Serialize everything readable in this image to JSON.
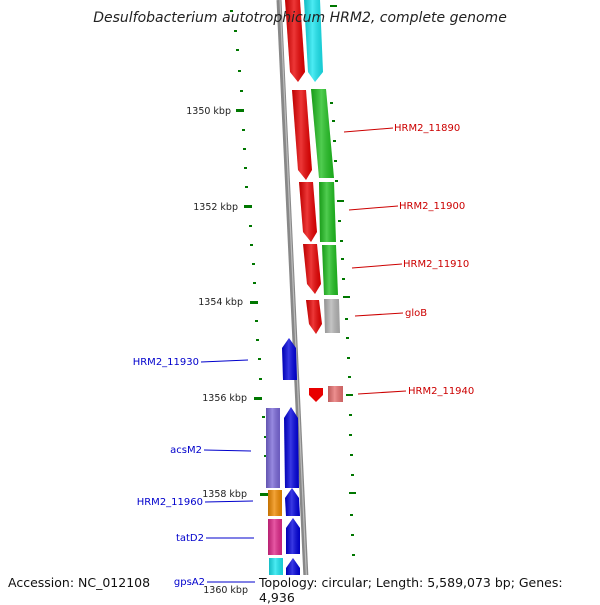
{
  "title": "Desulfobacterium autotrophicum HRM2, complete genome",
  "accession": "Accession: NC_012108",
  "topology": "Topology: circular; Length: 5,589,073 bp; Genes: 4,936",
  "colors": {
    "red": "#e80000",
    "green": "#1fbf1f",
    "cyan": "#19e6f0",
    "blue": "#0000dc",
    "purple": "#7a68d8",
    "orange": "#f08a00",
    "pink": "#e0288a",
    "grey": "#b4b4b4",
    "salmon": "#e87070",
    "label_red": "#cc0000",
    "label_blue": "#0000cc",
    "scale_green": "#007700",
    "backbone": "#888888"
  },
  "scale": {
    "ticks": [
      {
        "label": "1350 kbp"
      },
      {
        "label": "1352 kbp"
      },
      {
        "label": "1354 kbp"
      },
      {
        "label": "1356 kbp"
      },
      {
        "label": "1358 kbp"
      },
      {
        "label": "1360 kbp"
      }
    ]
  },
  "genes": {
    "right": [
      {
        "label": "HRM2_11890"
      },
      {
        "label": "HRM2_11900"
      },
      {
        "label": "HRM2_11910"
      },
      {
        "label": "gloB"
      },
      {
        "label": "HRM2_11940"
      }
    ],
    "left": [
      {
        "label": "HRM2_11930"
      },
      {
        "label": "acsM2"
      },
      {
        "label": "HRM2_11960"
      },
      {
        "label": "tatD2"
      },
      {
        "label": "gpsA2"
      }
    ]
  }
}
